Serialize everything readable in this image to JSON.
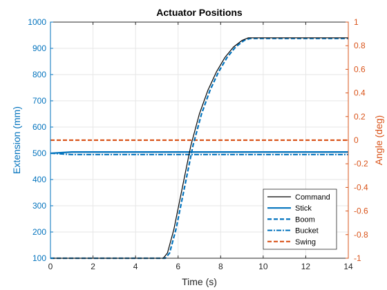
{
  "chart_data": {
    "type": "line",
    "title": "Actuator Positions",
    "xlabel": "Time (s)",
    "ylabel_left": "Extension (mm)",
    "ylabel_right": "Angle (deg)",
    "xlim": [
      0,
      14
    ],
    "ylim_left": [
      100,
      1000
    ],
    "ylim_right": [
      -1,
      1
    ],
    "x_ticks": [
      0,
      2,
      4,
      6,
      8,
      10,
      12,
      14
    ],
    "y_left_ticks": [
      100,
      200,
      300,
      400,
      500,
      600,
      700,
      800,
      900,
      1000
    ],
    "y_right_ticks": [
      -1,
      -0.8,
      -0.6,
      -0.4,
      -0.2,
      0,
      0.2,
      0.4,
      0.6,
      0.8,
      1
    ],
    "y_right_tick_labels": [
      "-1",
      "-0.8",
      "-0.6",
      "-0.4",
      "-0.2",
      "0",
      "0.2",
      "0.4",
      "0.6",
      "0.8",
      "1"
    ],
    "grid": true,
    "legend_position": "bottom-right",
    "colors": {
      "left_axis": "#0072BD",
      "right_axis": "#D95319",
      "command": "#000000",
      "stick": "#0072BD",
      "boom": "#0072BD",
      "bucket": "#0072BD",
      "swing": "#D95319",
      "grid": "#e6e6e6"
    },
    "series": [
      {
        "name": "Command",
        "axis": "left",
        "style": "solid",
        "x": [
          0,
          5.3,
          5.5,
          5.8,
          6.2,
          6.6,
          7.0,
          7.4,
          7.8,
          8.2,
          8.6,
          9.0,
          9.3,
          14
        ],
        "y": [
          100,
          100,
          120,
          210,
          370,
          530,
          650,
          740,
          810,
          865,
          905,
          930,
          940,
          940
        ]
      },
      {
        "name": "Stick",
        "axis": "left",
        "style": "solid",
        "x": [
          0,
          1,
          14
        ],
        "y": [
          500,
          505,
          505
        ]
      },
      {
        "name": "Boom",
        "axis": "left",
        "style": "dashed",
        "x": [
          0,
          5.4,
          5.6,
          5.9,
          6.3,
          6.7,
          7.1,
          7.5,
          7.9,
          8.3,
          8.7,
          9.1,
          9.4,
          14
        ],
        "y": [
          100,
          100,
          120,
          210,
          370,
          530,
          650,
          740,
          810,
          865,
          905,
          930,
          938,
          938
        ]
      },
      {
        "name": "Bucket",
        "axis": "left",
        "style": "dashdot",
        "x": [
          0,
          1,
          14
        ],
        "y": [
          500,
          495,
          495
        ]
      },
      {
        "name": "Swing",
        "axis": "right",
        "style": "dashed",
        "x": [
          0,
          14
        ],
        "y": [
          0,
          0
        ]
      }
    ]
  }
}
